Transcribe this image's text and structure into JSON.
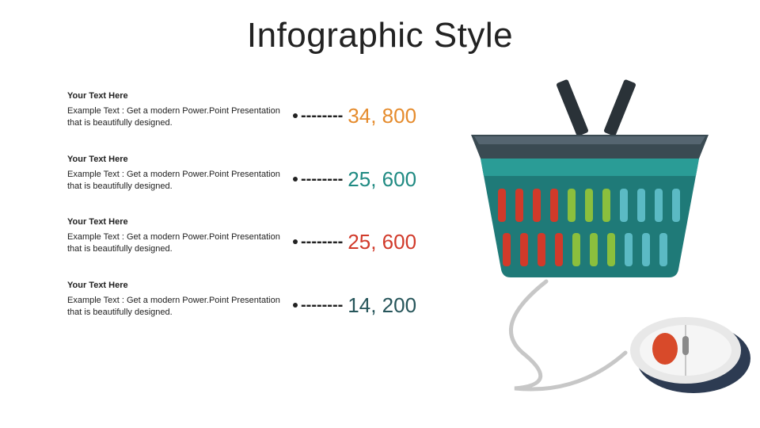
{
  "title": "Infographic Style",
  "rows": [
    {
      "heading": "Your Text Here",
      "body": "Example Text :\nGet a modern Power.Point  Presentation that is beautifully designed.",
      "value": "34, 800",
      "color": "#e58b2c"
    },
    {
      "heading": "Your Text Here",
      "body": "Example Text :\nGet a modern Power.Point  Presentation that is beautifully designed.",
      "value": "25, 600",
      "color": "#1f8a82"
    },
    {
      "heading": "Your Text Here",
      "body": "Example Text :\nGet a modern Power.Point  Presentation that is beautifully designed.",
      "value": "25, 600",
      "color": "#d13a2a"
    },
    {
      "heading": "Your Text Here",
      "body": "Example Text :\nGet a modern Power.Point  Presentation that is beautifully designed.",
      "value": "14, 200",
      "color": "#26555a"
    }
  ],
  "styling": {
    "background_color": "#ffffff",
    "title_color": "#222222",
    "title_fontsize": 44,
    "heading_fontsize": 11,
    "body_fontsize": 11,
    "value_fontsize": 26,
    "dash_count": 8,
    "bullet_color": "#222222",
    "dash_color": "#222222"
  },
  "basket": {
    "body_color": "#1f7a78",
    "body_highlight": "#2a9c96",
    "rim_color": "#3a4a52",
    "handle_color": "#2a3238",
    "slot_colors": [
      "#d13a2a",
      "#8bbf3d",
      "#5bbac4"
    ]
  },
  "mouse": {
    "body_color": "#e8e8e8",
    "shadow_color": "#2d3b52",
    "button_color": "#d84a2a",
    "wheel_color": "#8a8a8a",
    "cable_color": "#c7c7c7"
  }
}
